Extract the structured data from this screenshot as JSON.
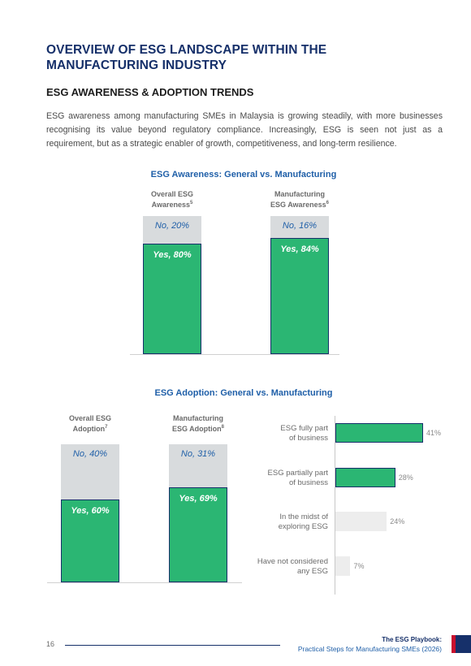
{
  "title": "OVERVIEW OF ESG LANDSCAPE WITHIN THE MANUFACTURING INDUSTRY",
  "subtitle": "ESG AWARENESS & ADOPTION TRENDS",
  "intro": "ESG awareness among manufacturing SMEs in Malaysia is growing steadily, with more businesses recognising its value beyond regulatory compliance. Increasingly, ESG is seen not just as a requirement, but as a strategic enabler of growth, competitiveness, and long-term resilience.",
  "awareness": {
    "title": "ESG Awareness: General vs. Manufacturing",
    "cols": [
      {
        "label1": "Overall ESG",
        "label2": "Awareness",
        "sup": "5",
        "no": "No, 20%",
        "yes": "Yes, 80%"
      },
      {
        "label1": "Manufacturing",
        "label2": "ESG Awareness",
        "sup": "6",
        "no": "No, 16%",
        "yes": "Yes, 84%"
      }
    ]
  },
  "adoption": {
    "title": "ESG Adoption: General vs. Manufacturing",
    "cols": [
      {
        "label1": "Overall ESG",
        "label2": "Adoption",
        "sup": "7",
        "no": "No, 40%",
        "yes": "Yes, 60%"
      },
      {
        "label1": "Manufacturing",
        "label2": "ESG Adoption",
        "sup": "8",
        "no": "No, 31%",
        "yes": "Yes, 69%"
      }
    ]
  },
  "chart_data": [
    {
      "type": "bar",
      "title": "ESG Awareness: General vs. Manufacturing",
      "categories": [
        "Overall ESG Awareness",
        "Manufacturing ESG Awareness"
      ],
      "series": [
        {
          "name": "Yes",
          "values": [
            80,
            84
          ]
        },
        {
          "name": "No",
          "values": [
            20,
            16
          ]
        }
      ],
      "stacked": true,
      "ylim": [
        0,
        100
      ]
    },
    {
      "type": "bar",
      "title": "ESG Adoption: General vs. Manufacturing",
      "categories": [
        "Overall ESG Adoption",
        "Manufacturing ESG Adoption"
      ],
      "series": [
        {
          "name": "Yes",
          "values": [
            60,
            69
          ]
        },
        {
          "name": "No",
          "values": [
            40,
            31
          ]
        }
      ],
      "stacked": true,
      "ylim": [
        0,
        100
      ]
    },
    {
      "type": "bar",
      "orientation": "horizontal",
      "categories": [
        [
          "ESG fully part",
          "of business"
        ],
        [
          "ESG partially part",
          "of business"
        ],
        [
          "In the midst of",
          "exploring ESG"
        ],
        [
          "Have not considered",
          "any ESG"
        ]
      ],
      "values": [
        41,
        28,
        24,
        7
      ],
      "value_labels": [
        "41%",
        "28%",
        "24%",
        "7%"
      ],
      "colors": [
        "#2bb673",
        "#2bb673",
        "#ededed",
        "#ededed"
      ]
    }
  ],
  "footer": {
    "page_number": "16",
    "book_title": "The ESG Playbook:",
    "book_subtitle": "Practical Steps for Manufacturing SMEs (2026)"
  },
  "colors": {
    "navy": "#16306a",
    "blue": "#1f5fa8",
    "green": "#2bb673",
    "grey": "#d8dbdd"
  }
}
